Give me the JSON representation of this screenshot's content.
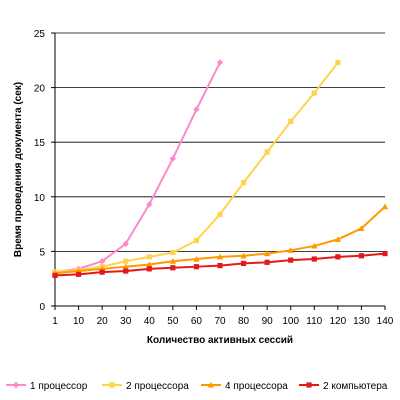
{
  "chart_data": {
    "type": "line",
    "title": "",
    "xlabel": "Количество активных сессий",
    "ylabel": "Время проведения документа (сек)",
    "categories": [
      "1",
      "10",
      "20",
      "30",
      "40",
      "50",
      "60",
      "70",
      "80",
      "90",
      "100",
      "110",
      "120",
      "130",
      "140"
    ],
    "ylim": [
      0,
      25
    ],
    "yticks": [
      0,
      5,
      10,
      15,
      20,
      25
    ],
    "grid": "horizontal",
    "legend_position": "bottom",
    "series": [
      {
        "name": "1 процессор",
        "color": "#ff88cc",
        "marker": "diamond",
        "values": [
          3.1,
          3.4,
          4.1,
          5.7,
          9.3,
          13.5,
          18.0,
          22.3,
          null,
          null,
          null,
          null,
          null,
          null,
          null
        ]
      },
      {
        "name": "2 процессора",
        "color": "#ffd24d",
        "marker": "square",
        "values": [
          3.1,
          3.3,
          3.6,
          4.1,
          4.5,
          4.9,
          6.0,
          8.4,
          11.3,
          14.1,
          16.9,
          19.5,
          22.3,
          null,
          null
        ]
      },
      {
        "name": "4 процессора",
        "color": "#ff9900",
        "marker": "triangle",
        "values": [
          3.0,
          3.2,
          3.4,
          3.6,
          3.8,
          4.1,
          4.3,
          4.5,
          4.6,
          4.8,
          5.1,
          5.5,
          6.1,
          7.1,
          9.1
        ]
      },
      {
        "name": "2 компьютера",
        "color": "#e31a1c",
        "marker": "square",
        "values": [
          2.8,
          2.9,
          3.1,
          3.2,
          3.4,
          3.5,
          3.6,
          3.7,
          3.9,
          4.0,
          4.2,
          4.3,
          4.5,
          4.6,
          4.8
        ]
      }
    ]
  }
}
